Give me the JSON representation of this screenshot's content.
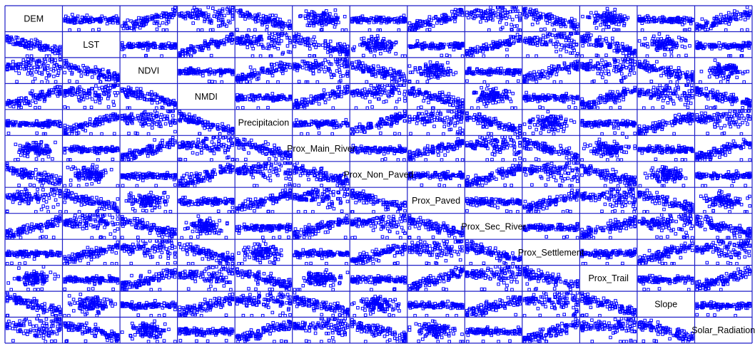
{
  "chart_data": {
    "type": "scatter",
    "title": "",
    "variables": [
      "DEM",
      "LST",
      "NDVI",
      "NMDI",
      "Precipitacion",
      "Prox_Main_River",
      "Prox_Non_Paved",
      "Prox_Paved",
      "Prox_Sec_River",
      "Prox_Settlement",
      "Prox_Trail",
      "Slope",
      "Solar_Radiation"
    ],
    "grid": true,
    "axis_ticks": false,
    "marker_style": "open-square",
    "point_color": "#0000ff",
    "frame_color": "#1f1fc8"
  }
}
